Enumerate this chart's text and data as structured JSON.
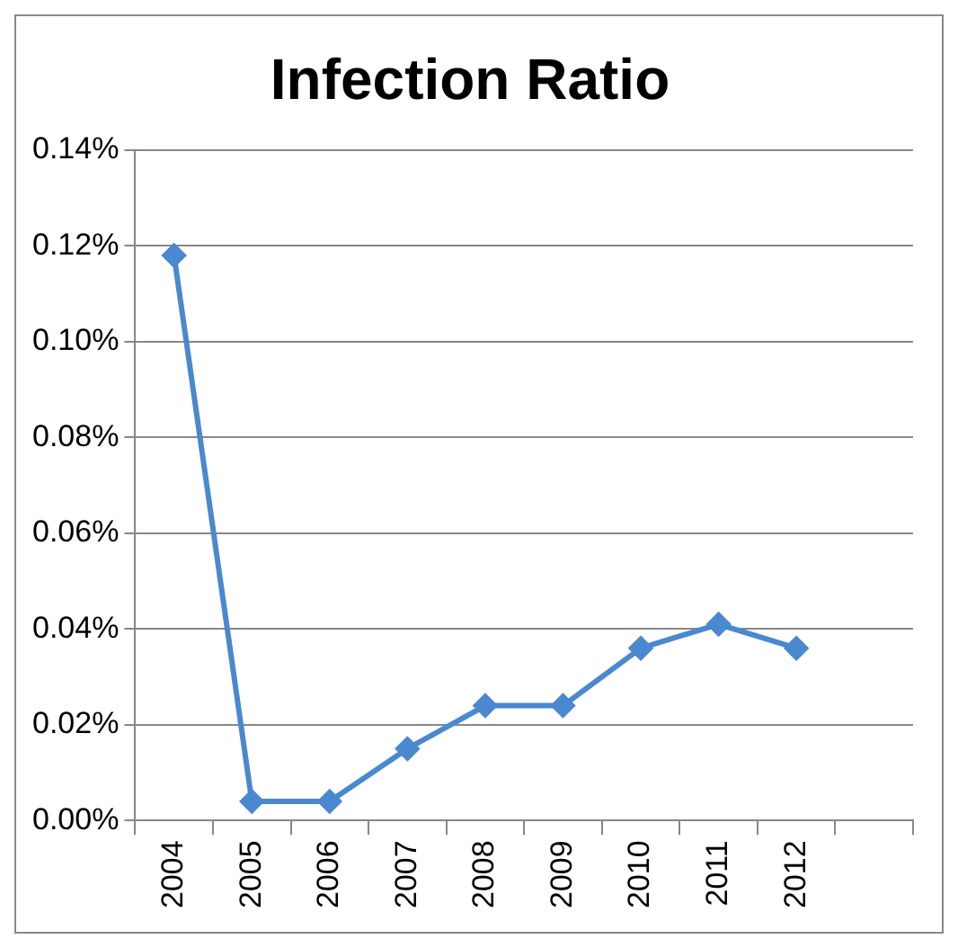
{
  "chart_data": {
    "type": "line",
    "title": "Infection Ratio",
    "categories": [
      "2004",
      "2005",
      "2006",
      "2007",
      "2008",
      "2009",
      "2010",
      "2011",
      "2012",
      null
    ],
    "series": [
      {
        "color": "#4a88d0",
        "values": [
          0.118,
          0.004,
          0.004,
          0.015,
          0.024,
          0.024,
          0.036,
          0.041,
          0.036,
          null
        ]
      }
    ],
    "ylim": [
      0,
      0.14
    ],
    "yticks": [
      {
        "value": 0,
        "label": "0.00%"
      },
      {
        "value": 0.02,
        "label": "0.02%"
      },
      {
        "value": 0.04,
        "label": "0.04%"
      },
      {
        "value": 0.06,
        "label": "0.06%"
      },
      {
        "value": 0.08,
        "label": "0.08%"
      },
      {
        "value": 0.1,
        "label": "0.10%"
      },
      {
        "value": 0.12,
        "label": "0.12%"
      },
      {
        "value": 0.14,
        "label": "0.14%"
      }
    ],
    "grid": "y",
    "legend": false,
    "marker": "diamond",
    "line_style": "solid"
  }
}
